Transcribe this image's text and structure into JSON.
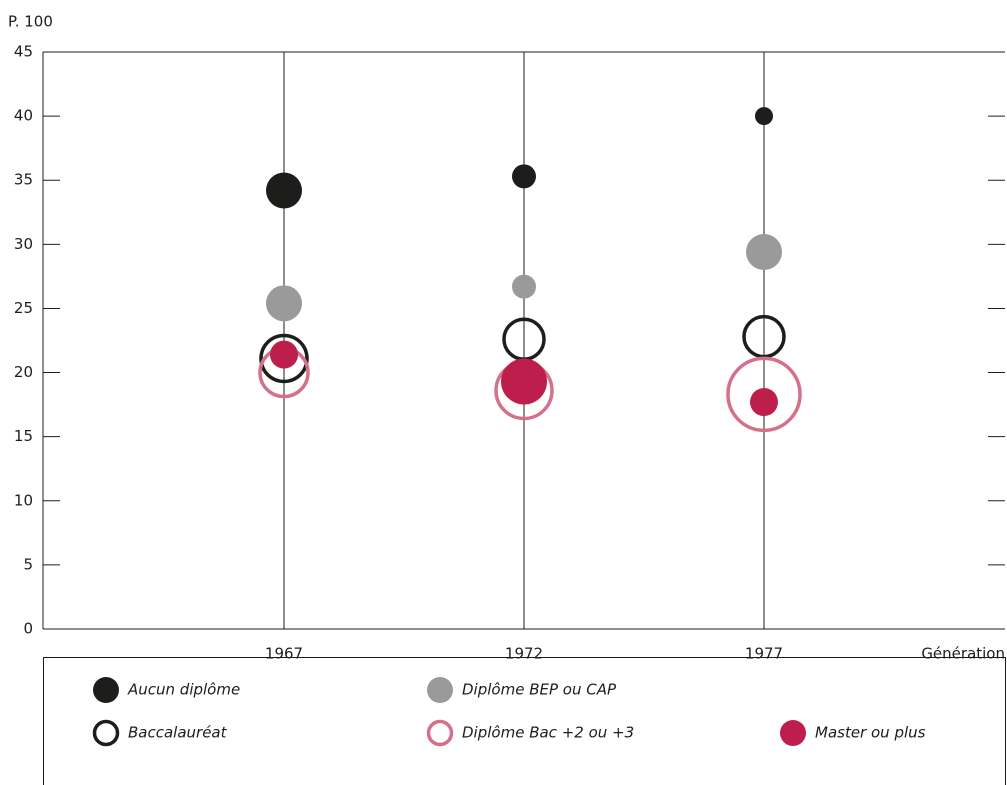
{
  "chart_data": {
    "type": "bubble",
    "y_label": "P. 100",
    "x_label": "Génération",
    "categories": [
      "1967",
      "1972",
      "1977"
    ],
    "ylim": [
      0,
      45
    ],
    "yticks": [
      0,
      5,
      10,
      15,
      20,
      25,
      30,
      35,
      40,
      45
    ],
    "series": [
      {
        "name": "Aucun diplôme",
        "color": "#1d1d1b",
        "fill": true,
        "values": [
          34.2,
          35.3,
          40.0
        ],
        "sizes": [
          18,
          12,
          9
        ]
      },
      {
        "name": "Diplôme BEP ou CAP",
        "color": "#9a9a9a",
        "fill": true,
        "values": [
          25.4,
          26.7,
          29.4
        ],
        "sizes": [
          18,
          12,
          18
        ]
      },
      {
        "name": "Baccalauréat",
        "color": "#1d1d1b",
        "fill": false,
        "values": [
          21.1,
          22.6,
          22.8
        ],
        "sizes": [
          23,
          20,
          20
        ]
      },
      {
        "name": "Diplôme Bac +2 ou +3",
        "color": "#d4708a",
        "fill": false,
        "values": [
          20.0,
          18.6,
          18.3
        ],
        "sizes": [
          24,
          28,
          36
        ]
      },
      {
        "name": "Master ou plus",
        "color": "#be1e4c",
        "fill": true,
        "values": [
          21.4,
          19.3,
          17.7
        ],
        "sizes": [
          14,
          23,
          14
        ]
      }
    ]
  }
}
